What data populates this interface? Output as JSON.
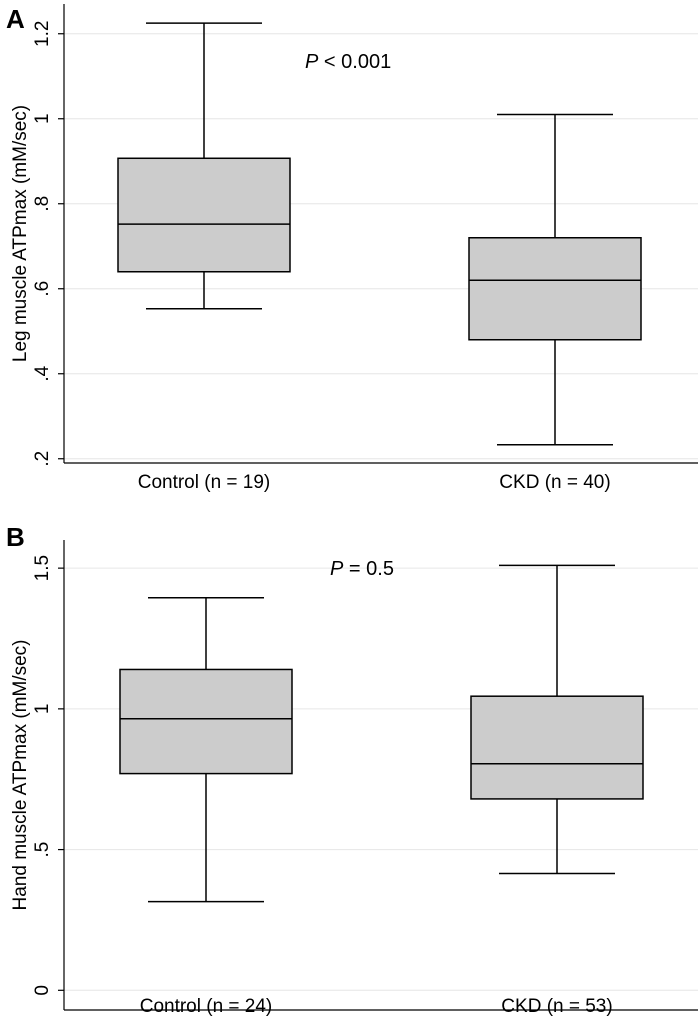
{
  "chart_data": [
    {
      "type": "box",
      "panel": "A",
      "ylabel": "Leg muscle ATPmax (mM/sec)",
      "ylim": [
        0.19,
        1.27
      ],
      "yticks": [
        0.2,
        0.4,
        0.6,
        0.8,
        1.0,
        1.2
      ],
      "ytick_labels": [
        ".2",
        ".4",
        ".6",
        ".8",
        "1",
        "1.2"
      ],
      "grid": true,
      "annotation": {
        "italic": "P",
        "text": " < 0.001"
      },
      "categories": [
        "Control (n = 19)",
        "CKD (n = 40)"
      ],
      "boxes": [
        {
          "min": 0.553,
          "q1": 0.64,
          "median": 0.752,
          "q3": 0.907,
          "max": 1.225
        },
        {
          "min": 0.233,
          "q1": 0.48,
          "median": 0.62,
          "q3": 0.72,
          "max": 1.01
        }
      ]
    },
    {
      "type": "box",
      "panel": "B",
      "ylabel": "Hand muscle ATPmax (mM/sec)",
      "ylim": [
        -0.07,
        1.6
      ],
      "yticks": [
        0,
        0.5,
        1.0,
        1.5
      ],
      "ytick_labels": [
        "0",
        ".5",
        "1",
        "1.5"
      ],
      "grid": true,
      "annotation": {
        "italic": "P",
        "text": " = 0.5"
      },
      "categories": [
        "Control (n = 24)",
        "CKD (n = 53)"
      ],
      "boxes": [
        {
          "min": 0.315,
          "q1": 0.77,
          "median": 0.965,
          "q3": 1.14,
          "max": 1.395
        },
        {
          "min": 0.415,
          "q1": 0.68,
          "median": 0.805,
          "q3": 1.045,
          "max": 1.51
        }
      ]
    }
  ]
}
